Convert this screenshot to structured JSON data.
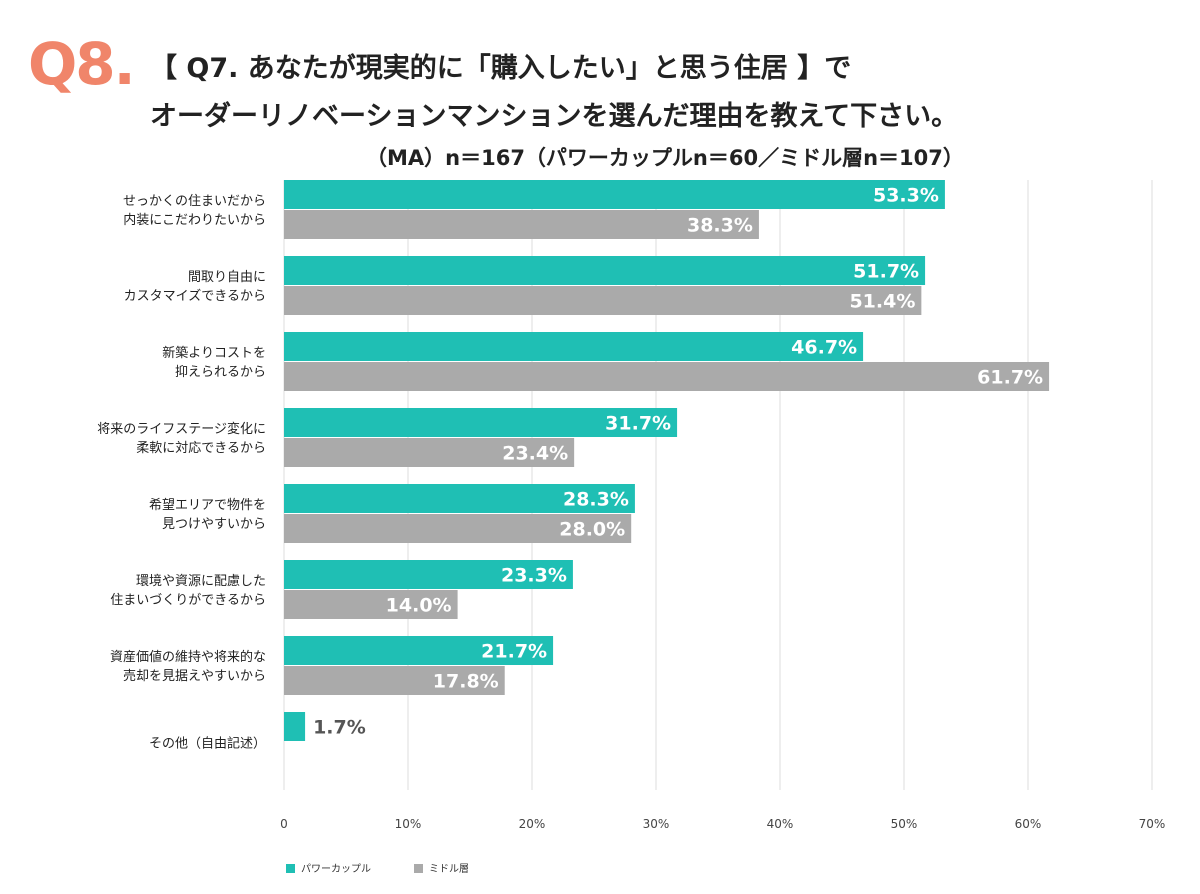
{
  "header": {
    "badge": "Q8.",
    "line1": "【 Q7. あなたが現実的に「購入したい」と思う住居 】で",
    "line2": "オーダーリノベーションマンションを選んだ理由を教えて下さい。",
    "subtitle": "（MA）n＝167（パワーカップルn＝60／ミドル層n＝107）"
  },
  "colors": {
    "badge": "#f0856a",
    "series1": "#1fbfb4",
    "series2": "#aaaaaa",
    "grid": "#dddddd",
    "value_on_bar": "#ffffff",
    "value_outside": "#555555"
  },
  "chart_data": {
    "type": "bar",
    "orientation": "horizontal",
    "title": "",
    "xlabel": "",
    "ylabel": "",
    "xlim": [
      0,
      70
    ],
    "ticks": [
      0,
      10,
      20,
      30,
      40,
      50,
      60,
      70
    ],
    "tick_labels": [
      "0",
      "10%",
      "20%",
      "30%",
      "40%",
      "50%",
      "60%",
      "70%"
    ],
    "grid": true,
    "legend_position": "bottom-left",
    "categories": [
      [
        "せっかくの住まいだから",
        "内装にこだわりたいから"
      ],
      [
        "間取り自由に",
        "カスタマイズできるから"
      ],
      [
        "新築よりコストを",
        "抑えられるから"
      ],
      [
        "将来のライフステージ変化に",
        "柔軟に対応できるから"
      ],
      [
        "希望エリアで物件を",
        "見つけやすいから"
      ],
      [
        "環境や資源に配慮した",
        "住まいづくりができるから"
      ],
      [
        "資産価値の維持や将来的な",
        "売却を見据えやすいから"
      ],
      [
        "その他（自由記述）"
      ]
    ],
    "series": [
      {
        "name": "パワーカップル",
        "values": [
          53.3,
          51.7,
          46.7,
          31.7,
          28.3,
          23.3,
          21.7,
          1.7
        ],
        "labels": [
          "53.3%",
          "51.7%",
          "46.7%",
          "31.7%",
          "28.3%",
          "23.3%",
          "21.7%",
          "1.7%"
        ]
      },
      {
        "name": "ミドル層",
        "values": [
          38.3,
          51.4,
          61.7,
          23.4,
          28.0,
          14.0,
          17.8,
          null
        ],
        "labels": [
          "38.3%",
          "51.4%",
          "61.7%",
          "23.4%",
          "28.0%",
          "14.0%",
          "17.8%",
          ""
        ]
      }
    ]
  }
}
